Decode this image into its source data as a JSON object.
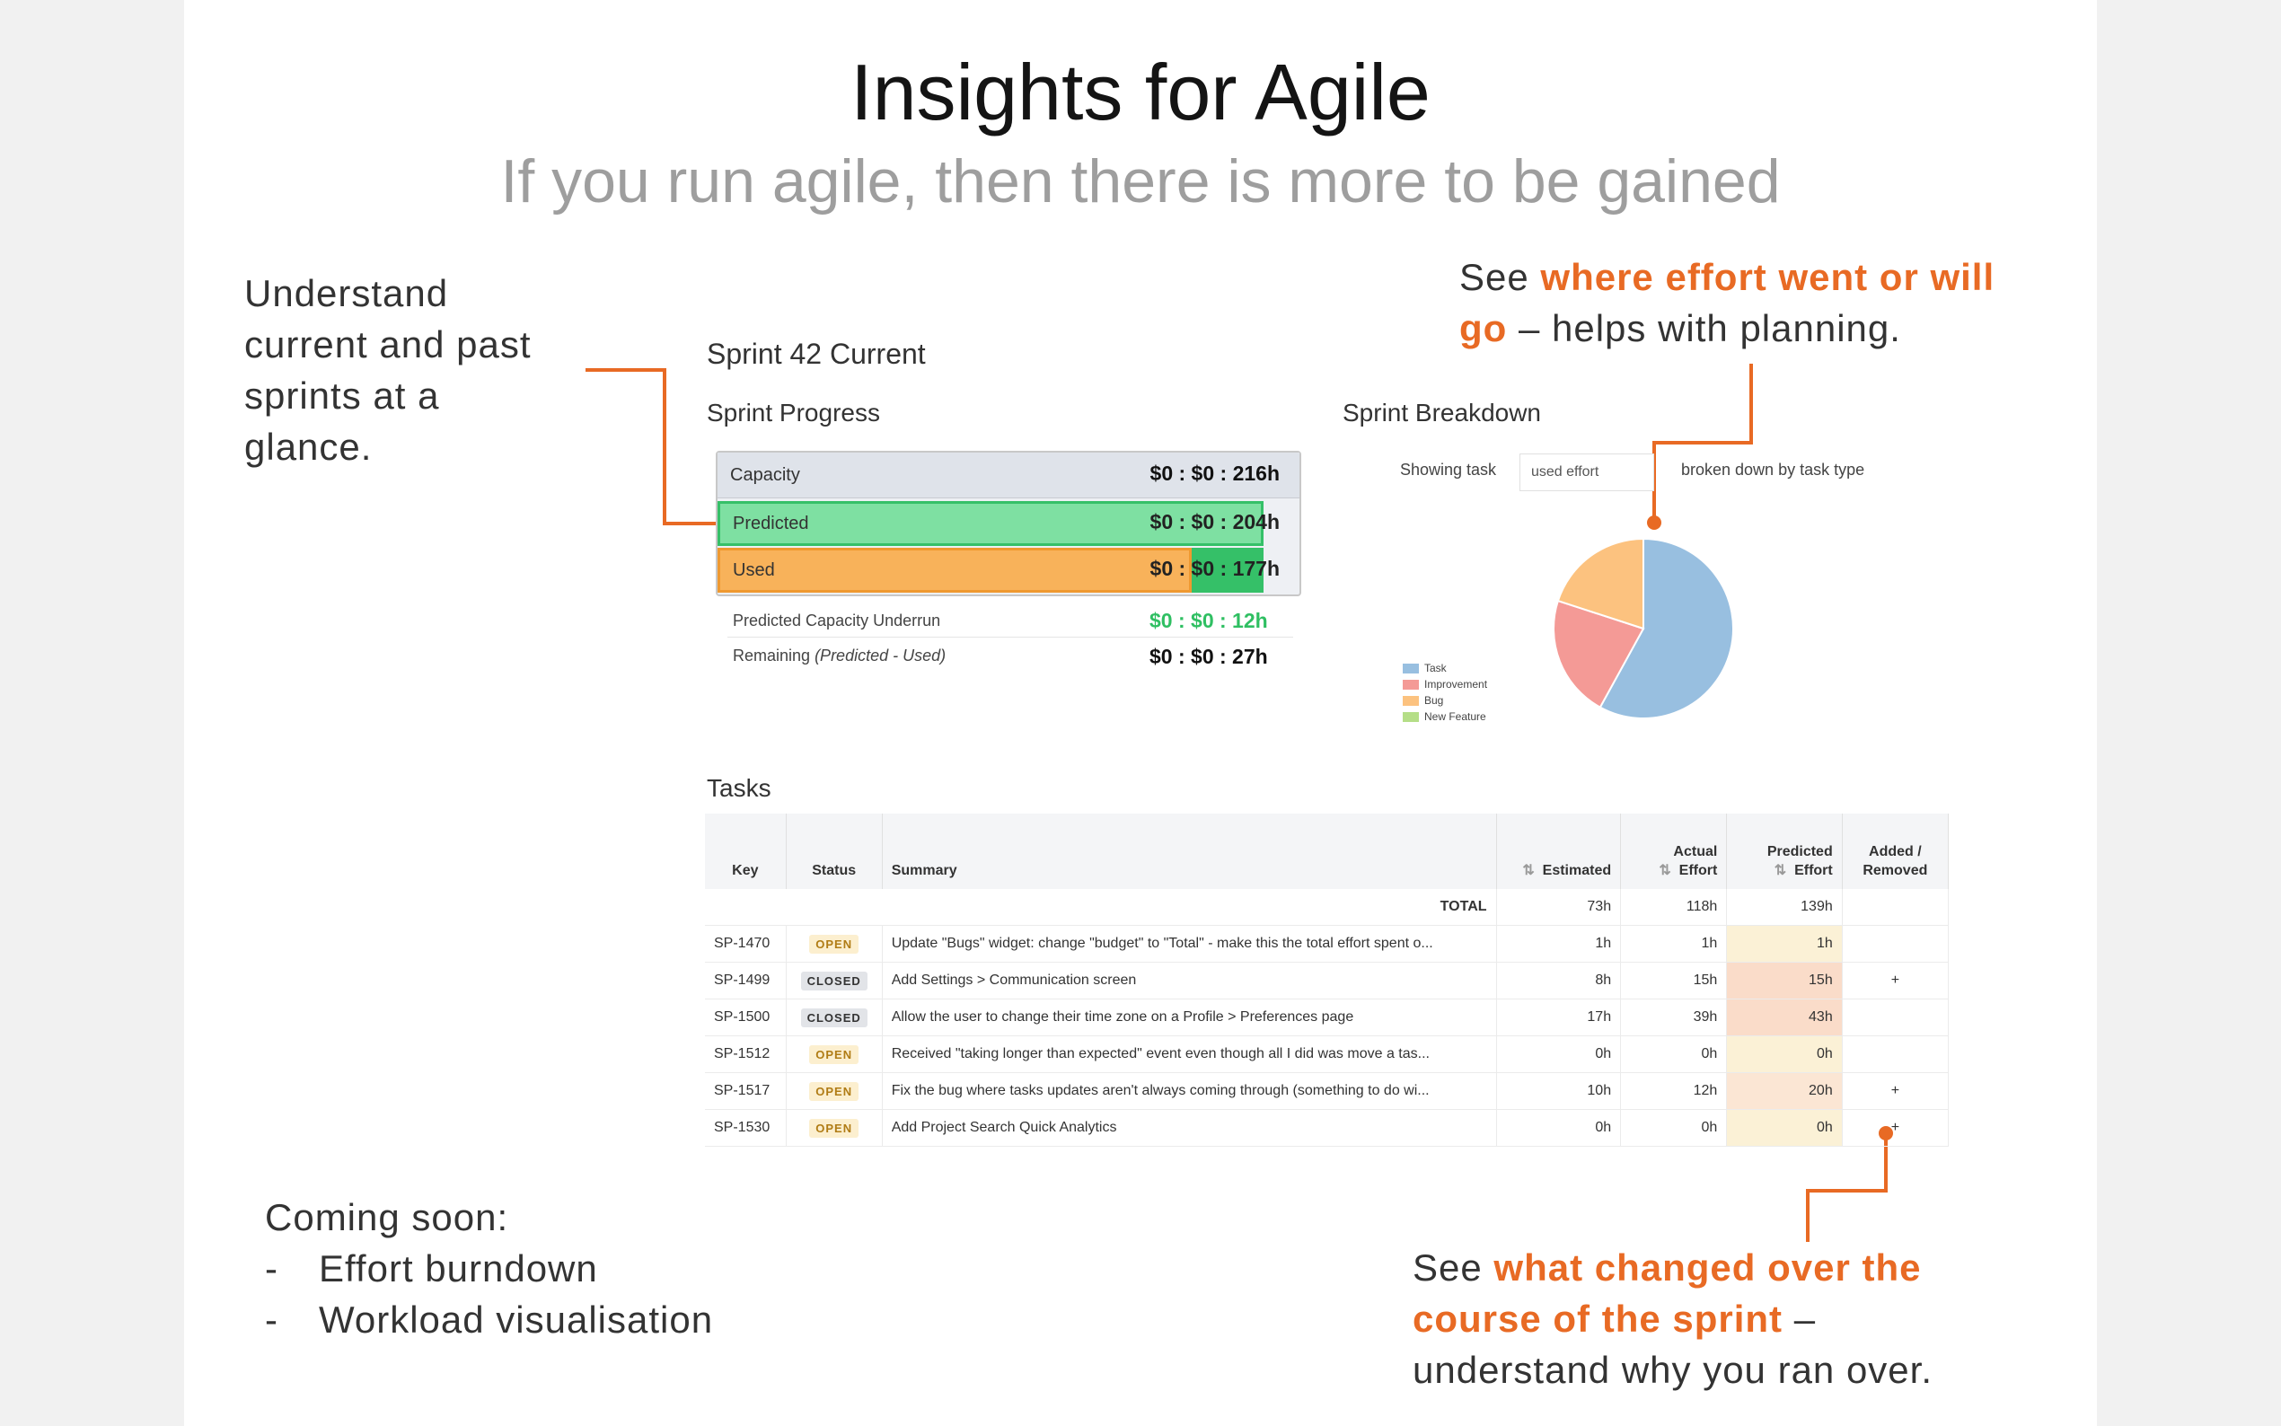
{
  "header": {
    "title": "Insights for Agile",
    "subtitle": "If you run agile, then there is more to be gained"
  },
  "callouts": {
    "left": [
      "Understand",
      "current and past",
      "sprints at a",
      "glance."
    ],
    "top_right": {
      "pre": "See ",
      "highlight_1": "where effort went or will",
      "highlight_2": "go",
      "post": " – helps with planning."
    },
    "bottom_right": {
      "pre": "See ",
      "highlight_1": "what changed over the",
      "highlight_2": "course of the sprint",
      "post_1": " –",
      "post_2": "understand  why you ran over."
    },
    "coming_soon": {
      "title": "Coming  soon:",
      "items": [
        "Effort burndown",
        "Workload visualisation"
      ],
      "bullet": "-"
    }
  },
  "sprint": {
    "title": "Sprint 42 Current",
    "progress_heading": "Sprint Progress",
    "bars": [
      {
        "label": "Capacity",
        "value": "$0 : $0 : 216h"
      },
      {
        "label": "Predicted",
        "value": "$0 : $0 : 204h"
      },
      {
        "label": "Used",
        "value": "$0 : $0 : 177h"
      }
    ],
    "underrun": {
      "label": "Predicted Capacity Underrun",
      "value": "$0 : $0 : 12h"
    },
    "remaining": {
      "label": "Remaining",
      "label_note": "(Predicted - Used)",
      "value": "$0 : $0 : 27h"
    }
  },
  "breakdown": {
    "heading": "Sprint Breakdown",
    "showing_label": "Showing task",
    "select_value": "used effort",
    "suffix": "broken down by task type",
    "legend": [
      {
        "name": "Task",
        "color": "#98bfe0"
      },
      {
        "name": "Improvement",
        "color": "#f49a96"
      },
      {
        "name": "Bug",
        "color": "#fcc27f"
      },
      {
        "name": "New Feature",
        "color": "#b5de87"
      }
    ]
  },
  "tasks": {
    "heading": "Tasks",
    "columns": {
      "key": "Key",
      "status": "Status",
      "summary": "Summary",
      "estimated": "Estimated",
      "actual_1": "Actual",
      "actual_2": "Effort",
      "predicted_1": "Predicted",
      "predicted_2": "Effort",
      "added_1": "Added /",
      "added_2": "Removed"
    },
    "total": {
      "label": "TOTAL",
      "estimated": "73h",
      "actual": "118h",
      "predicted": "139h"
    },
    "rows": [
      {
        "key": "SP-1470",
        "status": "OPEN",
        "summary": "Update \"Bugs\" widget: change \"budget\" to \"Total\" - make this the total effort spent o...",
        "estimated": "1h",
        "actual": "1h",
        "predicted": "1h",
        "added": ""
      },
      {
        "key": "SP-1499",
        "status": "CLOSED",
        "summary": "Add Settings > Communication screen",
        "estimated": "8h",
        "actual": "15h",
        "predicted": "15h",
        "added": "+"
      },
      {
        "key": "SP-1500",
        "status": "CLOSED",
        "summary": "Allow the user to change their time zone on a Profile > Preferences page",
        "estimated": "17h",
        "actual": "39h",
        "predicted": "43h",
        "added": ""
      },
      {
        "key": "SP-1512",
        "status": "OPEN",
        "summary": "Received \"taking longer than expected\" event even though all I did was move a tas...",
        "estimated": "0h",
        "actual": "0h",
        "predicted": "0h",
        "added": ""
      },
      {
        "key": "SP-1517",
        "status": "OPEN",
        "summary": "Fix the bug where tasks updates aren't always coming through (something to do wi...",
        "estimated": "10h",
        "actual": "12h",
        "predicted": "20h",
        "added": "+"
      },
      {
        "key": "SP-1530",
        "status": "OPEN",
        "summary": "Add Project Search Quick Analytics",
        "estimated": "0h",
        "actual": "0h",
        "predicted": "0h",
        "added": "+"
      }
    ]
  },
  "chart_data": {
    "type": "pie",
    "categories": [
      "Task",
      "Improvement",
      "Bug",
      "New Feature"
    ],
    "values": [
      58,
      22,
      20,
      0
    ],
    "colors": [
      "#98bfe0",
      "#f49a96",
      "#fcc27f",
      "#b5de87"
    ],
    "legend_position": "bottom-left"
  }
}
